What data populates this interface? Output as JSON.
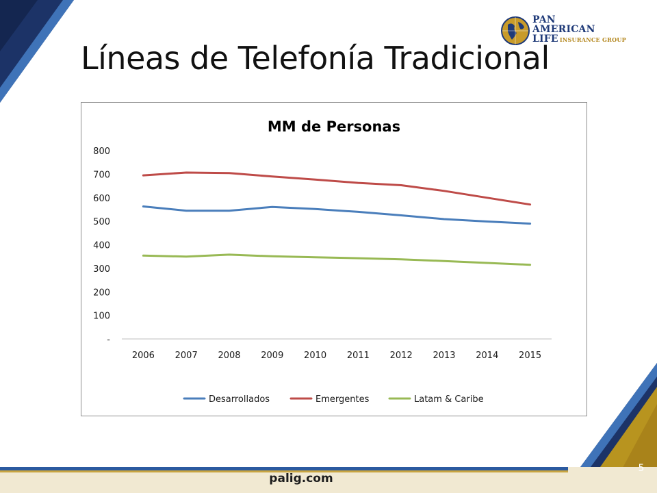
{
  "slide": {
    "title": "Líneas de Telefonía Tradicional",
    "page_number": "5"
  },
  "logo": {
    "line1": "PAN",
    "line2": "AMERICAN",
    "line3": "LIFE",
    "subtitle": "INSURANCE GROUP"
  },
  "footer": {
    "website": "palig.com"
  },
  "colors": {
    "navy": "#1f3a78",
    "gold": "#b3861c"
  },
  "chart_data": {
    "type": "line",
    "title": "MM de Personas",
    "xlabel": "",
    "ylabel": "",
    "x": [
      "2006",
      "2007",
      "2008",
      "2009",
      "2010",
      "2011",
      "2012",
      "2013",
      "2014",
      "2015"
    ],
    "ylim": [
      0,
      800
    ],
    "yticks": [
      0,
      100,
      200,
      300,
      400,
      500,
      600,
      700,
      800
    ],
    "ytick_labels": [
      "-",
      "100",
      "200",
      "300",
      "400",
      "500",
      "600",
      "700",
      "800"
    ],
    "grid": false,
    "legend_position": "bottom",
    "series": [
      {
        "name": "Desarrollados",
        "color": "#4a7ebb",
        "values": [
          563,
          545,
          545,
          561,
          552,
          540,
          525,
          509,
          499,
          490
        ]
      },
      {
        "name": "Emergentes",
        "color": "#be4b48",
        "values": [
          695,
          707,
          705,
          690,
          677,
          663,
          653,
          629,
          600,
          571
        ]
      },
      {
        "name": "Latam & Caribe",
        "color": "#98b954",
        "values": [
          354,
          350,
          358,
          351,
          347,
          343,
          338,
          331,
          323,
          315
        ]
      }
    ]
  }
}
